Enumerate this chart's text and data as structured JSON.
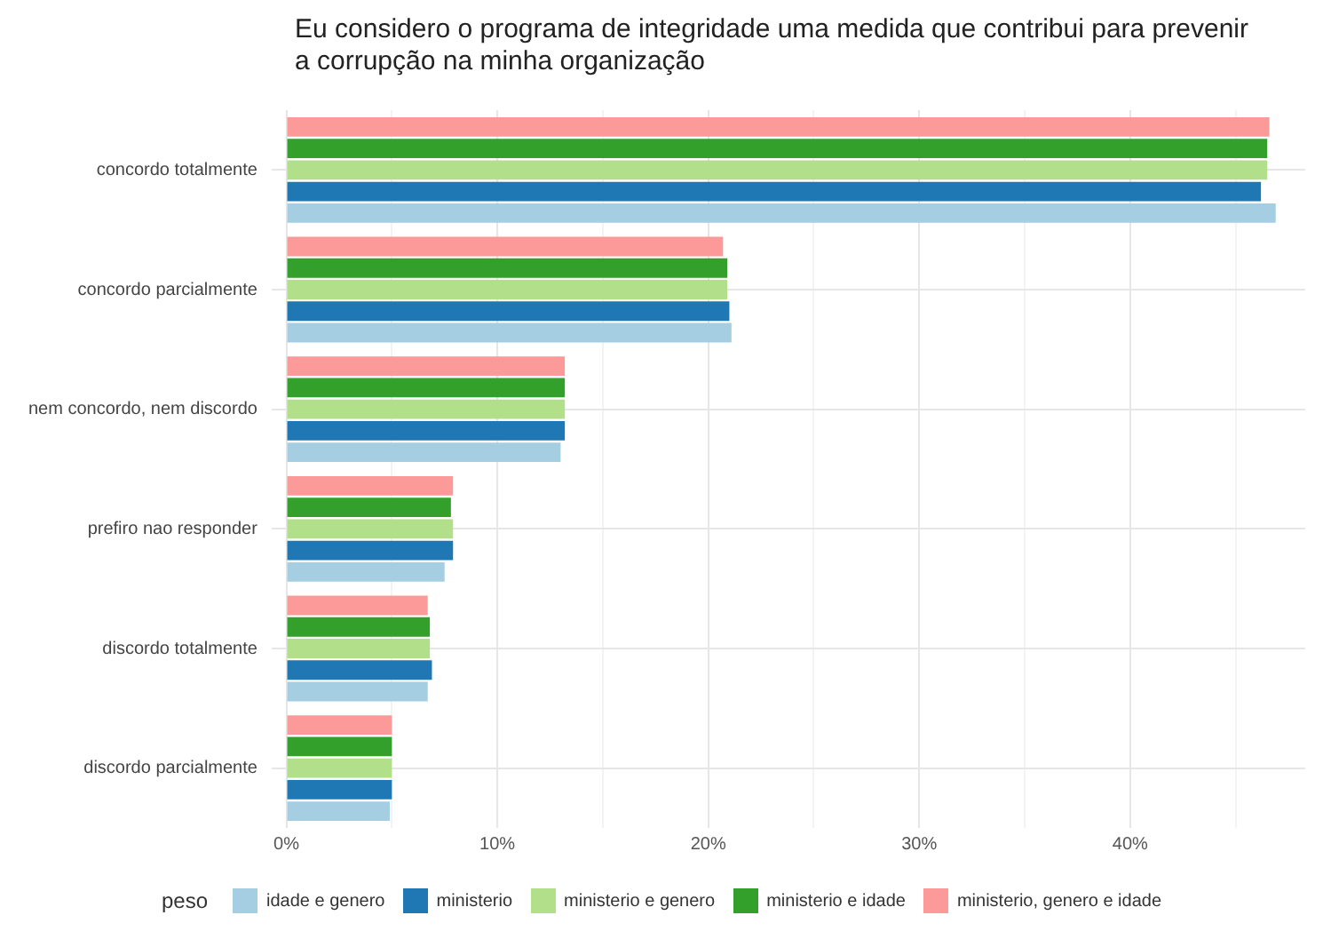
{
  "chart_data": {
    "type": "bar",
    "orientation": "horizontal",
    "title": "Eu considero o programa de integridade uma medida que contribui para prevenir a corrupção na minha organização",
    "legend_title": "peso",
    "categories": [
      "concordo totalmente",
      "concordo parcialmente",
      "nem concordo, nem discordo",
      "prefiro nao responder",
      "discordo totalmente",
      "discordo parcialmente"
    ],
    "series": [
      {
        "name": "idade e genero",
        "color": "#a6cee3",
        "values": [
          46.9,
          21.1,
          13.0,
          7.5,
          6.7,
          4.9
        ]
      },
      {
        "name": "ministerio",
        "color": "#1f78b4",
        "values": [
          46.2,
          21.0,
          13.2,
          7.9,
          6.9,
          5.0
        ]
      },
      {
        "name": "ministerio e genero",
        "color": "#b2df8a",
        "values": [
          46.5,
          20.9,
          13.2,
          7.9,
          6.8,
          5.0
        ]
      },
      {
        "name": "ministerio e idade",
        "color": "#33a02c",
        "values": [
          46.5,
          20.9,
          13.2,
          7.8,
          6.8,
          5.0
        ]
      },
      {
        "name": "ministerio, genero e idade",
        "color": "#fb9a99",
        "values": [
          46.6,
          20.7,
          13.2,
          7.9,
          6.7,
          5.0
        ]
      }
    ],
    "xlim": [
      -0.7,
      48.3
    ],
    "xticks": [
      {
        "value": 0,
        "label": "0%"
      },
      {
        "value": 5,
        "label": null
      },
      {
        "value": 10,
        "label": "10%"
      },
      {
        "value": 15,
        "label": null
      },
      {
        "value": 20,
        "label": "20%"
      },
      {
        "value": 25,
        "label": null
      },
      {
        "value": 30,
        "label": "30%"
      },
      {
        "value": 35,
        "label": null
      },
      {
        "value": 40,
        "label": "40%"
      },
      {
        "value": 45,
        "label": null
      }
    ],
    "grid": true,
    "legend": "bottom"
  }
}
